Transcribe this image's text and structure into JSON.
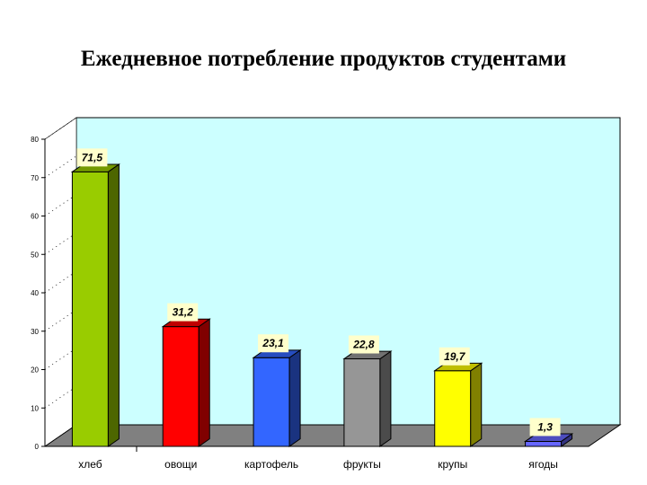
{
  "title": "Ежедневное потребление продуктов студентами",
  "chart_data": {
    "type": "bar",
    "title": "Ежедневное потребление продуктов студентами",
    "categories": [
      "хлеб",
      "овощи",
      "картофель",
      "фрукты",
      "крупы",
      "ягоды"
    ],
    "values": [
      71.5,
      31.2,
      23.1,
      22.8,
      19.7,
      1.3
    ],
    "value_labels": [
      "71,5",
      "31,2",
      "23,1",
      "22,8",
      "19,7",
      "1,3"
    ],
    "yticks": [
      0,
      10,
      20,
      30,
      40,
      50,
      60,
      70,
      80
    ],
    "ylim": [
      0,
      80
    ],
    "xlabel": "",
    "ylabel": "",
    "grid": false,
    "legend": "none",
    "wall_color": "#CCFFFF",
    "floor_color": "#808080",
    "bar_colors": [
      "#99CC00",
      "#FF0000",
      "#3366FF",
      "#969696",
      "#FFFF00",
      "#6666FF"
    ],
    "label_bg": "#FFFFCC"
  }
}
